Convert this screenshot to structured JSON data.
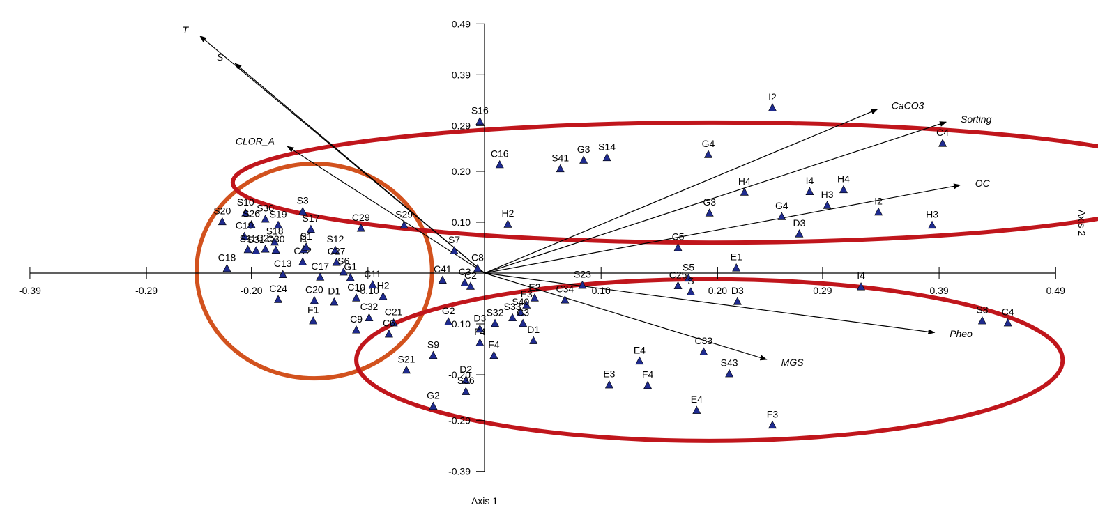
{
  "chart_data": {
    "type": "scatter",
    "xlabel": "Axis 1",
    "ylabel": "Axis 2",
    "xlim": [
      -0.39,
      0.49
    ],
    "ylim": [
      -0.39,
      0.49
    ],
    "x_ticks": [
      {
        "value": -0.39,
        "label": "-0.39"
      },
      {
        "value": -0.29,
        "label": "-0.29"
      },
      {
        "value": -0.2,
        "label": "-0.20"
      },
      {
        "value": -0.1,
        "label": "-0.10"
      },
      {
        "value": 0.1,
        "label": "0.10"
      },
      {
        "value": 0.2,
        "label": "0.20"
      },
      {
        "value": 0.29,
        "label": "0.29"
      },
      {
        "value": 0.39,
        "label": "0.39"
      },
      {
        "value": 0.49,
        "label": "0.49"
      }
    ],
    "y_ticks": [
      {
        "value": 0.49,
        "label": "0.49"
      },
      {
        "value": 0.39,
        "label": "0.39"
      },
      {
        "value": 0.29,
        "label": "0.29"
      },
      {
        "value": 0.2,
        "label": "0.20"
      },
      {
        "value": 0.1,
        "label": "0.10"
      },
      {
        "value": -0.1,
        "label": "-0.10"
      },
      {
        "value": -0.2,
        "label": "-0.20"
      },
      {
        "value": -0.29,
        "label": "-0.29"
      },
      {
        "value": -0.39,
        "label": "-0.39"
      }
    ],
    "points": [
      {
        "label": "S16",
        "x": -0.004,
        "y": 0.298
      },
      {
        "label": "C16",
        "x": 0.013,
        "y": 0.213
      },
      {
        "label": "H2",
        "x": 0.02,
        "y": 0.096
      },
      {
        "label": "C8",
        "x": -0.006,
        "y": 0.009
      },
      {
        "label": "S7",
        "x": -0.026,
        "y": 0.044
      },
      {
        "label": "S29",
        "x": -0.069,
        "y": 0.094
      },
      {
        "label": "C29",
        "x": -0.106,
        "y": 0.088
      },
      {
        "label": "C41",
        "x": -0.036,
        "y": -0.014
      },
      {
        "label": "C3",
        "x": -0.017,
        "y": -0.019
      },
      {
        "label": "C2",
        "x": -0.012,
        "y": -0.026
      },
      {
        "label": "S12",
        "x": -0.128,
        "y": 0.045
      },
      {
        "label": "C27",
        "x": -0.127,
        "y": 0.021
      },
      {
        "label": "S6",
        "x": -0.121,
        "y": 0.002
      },
      {
        "label": "G1",
        "x": -0.115,
        "y": -0.009
      },
      {
        "label": "C11",
        "x": -0.096,
        "y": -0.023
      },
      {
        "label": "H2",
        "x": -0.087,
        "y": -0.046
      },
      {
        "label": "C10",
        "x": -0.11,
        "y": -0.049
      },
      {
        "label": "C32",
        "x": -0.099,
        "y": -0.088
      },
      {
        "label": "C21",
        "x": -0.078,
        "y": -0.098
      },
      {
        "label": "C6",
        "x": -0.082,
        "y": -0.12
      },
      {
        "label": "C9",
        "x": -0.11,
        "y": -0.112
      },
      {
        "label": "D1",
        "x": -0.129,
        "y": -0.057
      },
      {
        "label": "C20",
        "x": -0.146,
        "y": -0.054
      },
      {
        "label": "F1",
        "x": -0.147,
        "y": -0.094
      },
      {
        "label": "C24",
        "x": -0.177,
        "y": -0.052
      },
      {
        "label": "C17",
        "x": -0.141,
        "y": -0.008
      },
      {
        "label": "C13",
        "x": -0.173,
        "y": -0.003
      },
      {
        "label": "C12",
        "x": -0.156,
        "y": 0.022
      },
      {
        "label": "I1",
        "x": -0.155,
        "y": 0.046
      },
      {
        "label": "S1",
        "x": -0.153,
        "y": 0.051
      },
      {
        "label": "S17",
        "x": -0.149,
        "y": 0.086
      },
      {
        "label": "S3",
        "x": -0.156,
        "y": 0.121
      },
      {
        "label": "S18",
        "x": -0.18,
        "y": 0.061
      },
      {
        "label": "C25",
        "x": -0.188,
        "y": 0.047
      },
      {
        "label": "C30",
        "x": -0.179,
        "y": 0.045
      },
      {
        "label": "S30",
        "x": -0.188,
        "y": 0.106
      },
      {
        "label": "S19",
        "x": -0.177,
        "y": 0.094
      },
      {
        "label": "S10",
        "x": -0.205,
        "y": 0.118
      },
      {
        "label": "S26",
        "x": -0.2,
        "y": 0.095
      },
      {
        "label": "C19",
        "x": -0.206,
        "y": 0.072
      },
      {
        "label": "S20",
        "x": -0.225,
        "y": 0.101
      },
      {
        "label": "S11",
        "x": -0.203,
        "y": 0.046
      },
      {
        "label": "S31",
        "x": -0.196,
        "y": 0.044
      },
      {
        "label": "C18",
        "x": -0.221,
        "y": 0.009
      },
      {
        "label": "E2",
        "x": 0.043,
        "y": -0.049
      },
      {
        "label": "E3",
        "x": 0.036,
        "y": -0.063
      },
      {
        "label": "C34",
        "x": 0.069,
        "y": -0.053
      },
      {
        "label": "S23",
        "x": 0.084,
        "y": -0.024
      },
      {
        "label": "S40",
        "x": 0.031,
        "y": -0.078
      },
      {
        "label": "S33",
        "x": 0.024,
        "y": -0.088
      },
      {
        "label": "C3",
        "x": 0.033,
        "y": -0.099
      },
      {
        "label": "S32",
        "x": 0.009,
        "y": -0.099
      },
      {
        "label": "D3",
        "x": -0.004,
        "y": -0.11
      },
      {
        "label": "F4",
        "x": -0.004,
        "y": -0.137
      },
      {
        "label": "F4",
        "x": 0.008,
        "y": -0.162
      },
      {
        "label": "D1",
        "x": 0.042,
        "y": -0.133
      },
      {
        "label": "G2",
        "x": -0.031,
        "y": -0.096
      },
      {
        "label": "S9",
        "x": -0.044,
        "y": -0.162
      },
      {
        "label": "S21",
        "x": -0.067,
        "y": -0.191
      },
      {
        "label": "D2",
        "x": -0.016,
        "y": -0.211
      },
      {
        "label": "S36",
        "x": -0.016,
        "y": -0.233
      },
      {
        "label": "G2",
        "x": -0.044,
        "y": -0.262
      },
      {
        "label": "S41",
        "x": 0.065,
        "y": 0.205
      },
      {
        "label": "G3",
        "x": 0.085,
        "y": 0.222
      },
      {
        "label": "S14",
        "x": 0.105,
        "y": 0.227
      },
      {
        "label": "G4",
        "x": 0.192,
        "y": 0.233
      },
      {
        "label": "I2",
        "x": 0.247,
        "y": 0.325
      },
      {
        "label": "C4",
        "x": 0.393,
        "y": 0.255
      },
      {
        "label": "H4",
        "x": 0.223,
        "y": 0.159
      },
      {
        "label": "I4",
        "x": 0.279,
        "y": 0.16
      },
      {
        "label": "H4",
        "x": 0.308,
        "y": 0.164
      },
      {
        "label": "H3",
        "x": 0.294,
        "y": 0.133
      },
      {
        "label": "G3",
        "x": 0.193,
        "y": 0.118
      },
      {
        "label": "G4",
        "x": 0.255,
        "y": 0.111
      },
      {
        "label": "D3",
        "x": 0.27,
        "y": 0.077
      },
      {
        "label": "I2",
        "x": 0.338,
        "y": 0.12
      },
      {
        "label": "H3",
        "x": 0.384,
        "y": 0.094
      },
      {
        "label": "C5",
        "x": 0.166,
        "y": 0.05
      },
      {
        "label": "E1",
        "x": 0.216,
        "y": 0.01
      },
      {
        "label": "S5",
        "x": 0.175,
        "y": -0.01
      },
      {
        "label": "C25",
        "x": 0.166,
        "y": -0.025
      },
      {
        "label": "S",
        "x": 0.177,
        "y": -0.037
      },
      {
        "label": "D3",
        "x": 0.217,
        "y": -0.056
      },
      {
        "label": "I4",
        "x": 0.323,
        "y": -0.027
      },
      {
        "label": "S8",
        "x": 0.427,
        "y": -0.094
      },
      {
        "label": "C4",
        "x": 0.449,
        "y": -0.098
      },
      {
        "label": "C33",
        "x": 0.188,
        "y": -0.155
      },
      {
        "label": "E4",
        "x": 0.133,
        "y": -0.173
      },
      {
        "label": "S43",
        "x": 0.21,
        "y": -0.198
      },
      {
        "label": "E3",
        "x": 0.107,
        "y": -0.22
      },
      {
        "label": "F4",
        "x": 0.14,
        "y": -0.221
      },
      {
        "label": "E4",
        "x": 0.182,
        "y": -0.27
      },
      {
        "label": "F3",
        "x": 0.247,
        "y": -0.299
      }
    ],
    "vectors": [
      {
        "label": "T",
        "x": -0.244,
        "y": 0.466
      },
      {
        "label": "S",
        "x": -0.214,
        "y": 0.412
      },
      {
        "label": "CLOR_A",
        "x": -0.169,
        "y": 0.249
      },
      {
        "label": "CaCO3",
        "x": 0.337,
        "y": 0.322
      },
      {
        "label": "Sorting",
        "x": 0.396,
        "y": 0.297
      },
      {
        "label": "OC",
        "x": 0.408,
        "y": 0.173
      },
      {
        "label": "Pheo",
        "x": 0.386,
        "y": -0.117
      },
      {
        "label": "MGS",
        "x": 0.242,
        "y": -0.17
      }
    ],
    "ellipses": [
      {
        "cx": -0.146,
        "cy": 0.004,
        "rx": 0.101,
        "ry": 0.211,
        "color": "#d2521e"
      },
      {
        "cx": 0.197,
        "cy": 0.178,
        "rx": 0.413,
        "ry": 0.118,
        "color": "#c0161c"
      },
      {
        "cx": 0.193,
        "cy": -0.171,
        "rx": 0.303,
        "ry": 0.159,
        "color": "#c0161c"
      }
    ],
    "marker_color": "#1f2b8f",
    "grid": false
  }
}
